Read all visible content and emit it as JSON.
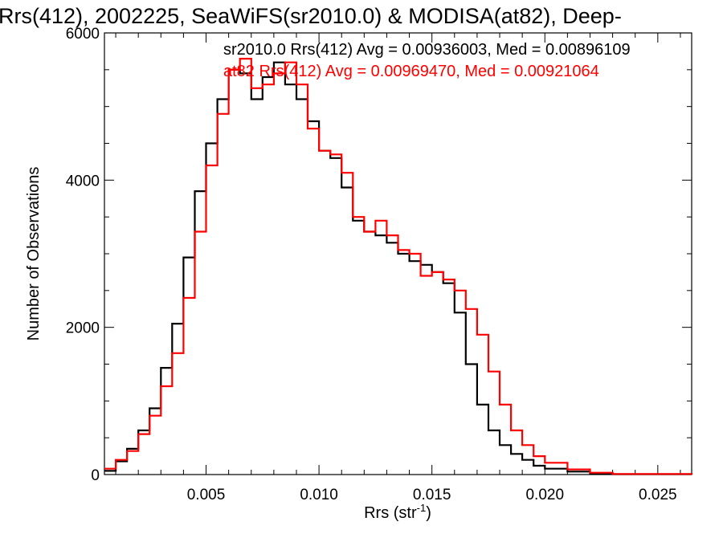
{
  "chart_data": {
    "type": "line",
    "title": "Rrs(412), 2002225, SeaWiFS(sr2010.0) & MODISA(at82), Deep-",
    "xlabel_main": "Rrs (str",
    "xlabel_sup": "-1",
    "xlabel_close": ")",
    "ylabel": "Number of Observations",
    "xlim": [
      0.0005,
      0.0265
    ],
    "ylim": [
      0,
      6000
    ],
    "xticks": [
      {
        "value": 0.005,
        "label": "0.005"
      },
      {
        "value": 0.01,
        "label": "0.010"
      },
      {
        "value": 0.015,
        "label": "0.015"
      },
      {
        "value": 0.02,
        "label": "0.020"
      },
      {
        "value": 0.025,
        "label": "0.025"
      }
    ],
    "yticks": [
      {
        "value": 0,
        "label": "0"
      },
      {
        "value": 2000,
        "label": "2000"
      },
      {
        "value": 4000,
        "label": "4000"
      },
      {
        "value": 6000,
        "label": "6000"
      }
    ],
    "grid": false,
    "legend": [
      {
        "text": "sr2010.0 Rrs(412) Avg = 0.00936003, Med = 0.00896109",
        "color": "#000000"
      },
      {
        "text": "at82 Rrs(412) Avg = 0.00969470, Med = 0.00921064",
        "color": "#ff0000"
      }
    ],
    "series": [
      {
        "color": "#000000",
        "x": [
          0.0005,
          0.001,
          0.0015,
          0.002,
          0.0025,
          0.003,
          0.0035,
          0.004,
          0.0045,
          0.005,
          0.0055,
          0.006,
          0.0065,
          0.007,
          0.0075,
          0.008,
          0.0085,
          0.009,
          0.0095,
          0.01,
          0.0105,
          0.011,
          0.0115,
          0.012,
          0.0125,
          0.013,
          0.0135,
          0.014,
          0.0145,
          0.015,
          0.0155,
          0.016,
          0.0165,
          0.017,
          0.0175,
          0.018,
          0.0185,
          0.019,
          0.0195,
          0.02,
          0.021,
          0.022,
          0.023,
          0.0265
        ],
        "y": [
          50,
          180,
          350,
          600,
          900,
          1450,
          2050,
          2950,
          3850,
          4500,
          5100,
          5500,
          5450,
          5100,
          5400,
          5600,
          5300,
          5100,
          4800,
          4400,
          4300,
          3900,
          3450,
          3300,
          3250,
          3150,
          3000,
          2900,
          2850,
          2750,
          2600,
          2200,
          1500,
          950,
          600,
          400,
          280,
          200,
          120,
          80,
          40,
          15,
          5,
          0
        ]
      },
      {
        "color": "#ff0000",
        "x": [
          0.0005,
          0.001,
          0.0015,
          0.002,
          0.0025,
          0.003,
          0.0035,
          0.004,
          0.0045,
          0.005,
          0.0055,
          0.006,
          0.0065,
          0.007,
          0.0075,
          0.008,
          0.0085,
          0.009,
          0.0095,
          0.01,
          0.0105,
          0.011,
          0.0115,
          0.012,
          0.0125,
          0.013,
          0.0135,
          0.014,
          0.0145,
          0.015,
          0.0155,
          0.016,
          0.0165,
          0.017,
          0.0175,
          0.018,
          0.0185,
          0.019,
          0.0195,
          0.02,
          0.021,
          0.022,
          0.023,
          0.0265
        ],
        "y": [
          80,
          200,
          320,
          550,
          800,
          1200,
          1650,
          2400,
          3300,
          4200,
          4900,
          5500,
          5650,
          5250,
          5300,
          5450,
          5600,
          5300,
          4700,
          4400,
          4350,
          4100,
          3500,
          3300,
          3450,
          3250,
          3050,
          3000,
          2700,
          2750,
          2650,
          2500,
          2250,
          1900,
          1400,
          950,
          600,
          400,
          250,
          160,
          70,
          25,
          8,
          0
        ]
      }
    ]
  }
}
